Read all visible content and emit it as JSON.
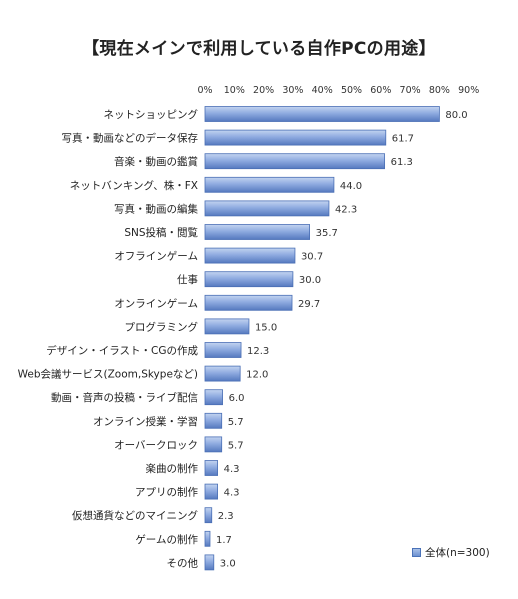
{
  "chart_data": {
    "type": "bar",
    "orientation": "horizontal",
    "title": "【現在メインで利用している自作PCの用途】",
    "categories": [
      "ネットショッピング",
      "写真・動画などのデータ保存",
      "音楽・動画の鑑賞",
      "ネットバンキング、株・FX",
      "写真・動画の編集",
      "SNS投稿・閲覧",
      "オフラインゲーム",
      "仕事",
      "オンラインゲーム",
      "プログラミング",
      "デザイン・イラスト・CGの作成",
      "Web会議サービス(Zoom,Skypeなど)",
      "動画・音声の投稿・ライブ配信",
      "オンライン授業・学習",
      "オーバークロック",
      "楽曲の制作",
      "アプリの制作",
      "仮想通貨などのマイニング",
      "ゲームの制作",
      "その他"
    ],
    "series": [
      {
        "name": "全体(n=300)",
        "values": [
          80.0,
          61.7,
          61.3,
          44.0,
          42.3,
          35.7,
          30.7,
          30.0,
          29.7,
          15.0,
          12.3,
          12.0,
          6.0,
          5.7,
          5.7,
          4.3,
          4.3,
          2.3,
          1.7,
          3.0
        ]
      }
    ],
    "value_labels": [
      "80.0",
      "61.7",
      "61.3",
      "44.0",
      "42.3",
      "35.7",
      "30.7",
      "30.0",
      "29.7",
      "15.0",
      "12.3",
      "12.0",
      "6.0",
      "5.7",
      "5.7",
      "4.3",
      "4.3",
      "2.3",
      "1.7",
      "3.0"
    ],
    "xlim": [
      0,
      90
    ],
    "xticks": [
      "0%",
      "10%",
      "20%",
      "30%",
      "40%",
      "50%",
      "60%",
      "70%",
      "80%",
      "90%"
    ],
    "grid": false,
    "legend_position": "bottom-right",
    "bar_color": "#6d91d0"
  }
}
